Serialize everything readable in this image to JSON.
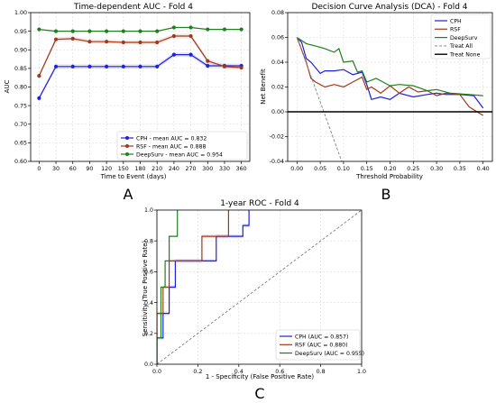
{
  "colors": {
    "cph": "#1f1fe0",
    "rsf": "#a0391c",
    "deepsurv": "#1e7f1e",
    "treat_all": "#808080",
    "treat_none": "#000000",
    "diagonal": "#808080"
  },
  "panel_labels": [
    "A",
    "B",
    "C"
  ],
  "chart_data": [
    {
      "type": "line",
      "title": "Time-dependent AUC - Fold 4",
      "xlabel": "Time to Event (days)",
      "ylabel": "AUC",
      "x": [
        0,
        30,
        60,
        90,
        120,
        150,
        180,
        210,
        240,
        270,
        300,
        330,
        360
      ],
      "xticks": [
        0,
        30,
        60,
        90,
        120,
        150,
        180,
        210,
        240,
        270,
        300,
        330,
        360
      ],
      "xlim": [
        -15,
        375
      ],
      "ylim": [
        0.6,
        1.0
      ],
      "yticks": [
        0.6,
        0.65,
        0.7,
        0.75,
        0.8,
        0.85,
        0.9,
        0.95,
        1.0
      ],
      "grid": true,
      "legend": "lower right",
      "series": [
        {
          "name": "CPH - mean AUC = 0.832",
          "values": [
            0.77,
            0.855,
            0.855,
            0.855,
            0.855,
            0.855,
            0.855,
            0.855,
            0.887,
            0.887,
            0.857,
            0.857,
            0.857
          ]
        },
        {
          "name": "RSF - mean AUC = 0.888",
          "values": [
            0.83,
            0.928,
            0.93,
            0.922,
            0.922,
            0.92,
            0.92,
            0.92,
            0.937,
            0.937,
            0.87,
            0.855,
            0.852
          ]
        },
        {
          "name": "DeepSurv - mean AUC = 0.954",
          "values": [
            0.955,
            0.95,
            0.95,
            0.95,
            0.95,
            0.95,
            0.95,
            0.95,
            0.96,
            0.96,
            0.955,
            0.955,
            0.955
          ]
        }
      ]
    },
    {
      "type": "line",
      "title": "Decision Curve Analysis (DCA) - Fold 4",
      "xlabel": "Threshold Probability",
      "ylabel": "Net Benefit",
      "xlim": [
        -0.02,
        0.42
      ],
      "ylim": [
        -0.04,
        0.08
      ],
      "xticks": [
        0.0,
        0.05,
        0.1,
        0.15,
        0.2,
        0.25,
        0.3,
        0.35,
        0.4
      ],
      "yticks": [
        -0.04,
        -0.02,
        0.0,
        0.02,
        0.04,
        0.06,
        0.08
      ],
      "grid": true,
      "legend": "upper right",
      "series": [
        {
          "name": "CPH",
          "x": [
            0,
            0.01,
            0.02,
            0.03,
            0.05,
            0.06,
            0.08,
            0.1,
            0.12,
            0.14,
            0.15,
            0.16,
            0.18,
            0.2,
            0.22,
            0.25,
            0.28,
            0.3,
            0.32,
            0.35,
            0.38,
            0.4
          ],
          "values": [
            0.06,
            0.056,
            0.043,
            0.04,
            0.031,
            0.033,
            0.033,
            0.034,
            0.03,
            0.032,
            0.022,
            0.01,
            0.012,
            0.01,
            0.015,
            0.012,
            0.014,
            0.015,
            0.014,
            0.014,
            0.013,
            0.003
          ]
        },
        {
          "name": "RSF",
          "x": [
            0,
            0.01,
            0.02,
            0.03,
            0.04,
            0.06,
            0.08,
            0.1,
            0.12,
            0.14,
            0.15,
            0.16,
            0.18,
            0.2,
            0.22,
            0.24,
            0.26,
            0.28,
            0.3,
            0.32,
            0.35,
            0.37,
            0.4
          ],
          "values": [
            0.06,
            0.05,
            0.04,
            0.027,
            0.024,
            0.02,
            0.022,
            0.02,
            0.024,
            0.028,
            0.018,
            0.02,
            0.015,
            0.021,
            0.015,
            0.02,
            0.016,
            0.017,
            0.013,
            0.015,
            0.014,
            0.004,
            -0.003
          ]
        },
        {
          "name": "DeepSurv",
          "x": [
            0,
            0.02,
            0.04,
            0.06,
            0.08,
            0.09,
            0.1,
            0.12,
            0.13,
            0.14,
            0.15,
            0.17,
            0.2,
            0.22,
            0.25,
            0.28,
            0.3,
            0.33,
            0.37,
            0.4
          ],
          "values": [
            0.06,
            0.055,
            0.053,
            0.051,
            0.048,
            0.051,
            0.04,
            0.041,
            0.032,
            0.033,
            0.024,
            0.027,
            0.021,
            0.022,
            0.021,
            0.017,
            0.018,
            0.015,
            0.014,
            0.013
          ]
        },
        {
          "name": "Treat All",
          "x": [
            0,
            0.1
          ],
          "values": [
            0.06,
            -0.044
          ]
        },
        {
          "name": "Treat None",
          "x": [
            -0.02,
            0.42
          ],
          "values": [
            0,
            0
          ]
        }
      ]
    },
    {
      "type": "line",
      "title": "1-year ROC - Fold 4",
      "xlabel": "1 - Specificity (False Positive Rate)",
      "ylabel": "Sensitivity (True Positive Rate)",
      "xlim": [
        0,
        1
      ],
      "ylim": [
        0,
        1
      ],
      "xticks": [
        0.0,
        0.2,
        0.4,
        0.6,
        0.8,
        1.0
      ],
      "yticks": [
        0.0,
        0.2,
        0.4,
        0.6,
        0.8,
        1.0
      ],
      "grid": true,
      "legend": "lower right",
      "series": [
        {
          "name": "CPH (AUC = 0.857)",
          "x": [
            0,
            0,
            0.03,
            0.03,
            0.06,
            0.06,
            0.09,
            0.09,
            0.29,
            0.29,
            0.42,
            0.42,
            0.45,
            0.45
          ],
          "values": [
            0,
            0.17,
            0.17,
            0.33,
            0.33,
            0.5,
            0.5,
            0.67,
            0.67,
            0.83,
            0.83,
            0.9,
            0.9,
            1.0
          ]
        },
        {
          "name": "RSF (AUC = 0.880)",
          "x": [
            0,
            0,
            0.03,
            0.03,
            0.06,
            0.06,
            0.22,
            0.22,
            0.32,
            0.32,
            0.35,
            0.35
          ],
          "values": [
            0,
            0.33,
            0.33,
            0.5,
            0.5,
            0.67,
            0.67,
            0.83,
            0.83,
            0.83,
            0.83,
            1.0
          ]
        },
        {
          "name": "DeepSurv (AUC = 0.955)",
          "x": [
            0,
            0,
            0.02,
            0.02,
            0.04,
            0.04,
            0.06,
            0.06,
            0.08,
            0.08,
            0.1,
            0.1
          ],
          "values": [
            0,
            0.17,
            0.17,
            0.5,
            0.5,
            0.67,
            0.67,
            0.83,
            0.83,
            0.83,
            0.83,
            1.0
          ]
        },
        {
          "name": "",
          "x": [
            0,
            1
          ],
          "values": [
            0,
            1
          ]
        }
      ]
    }
  ]
}
